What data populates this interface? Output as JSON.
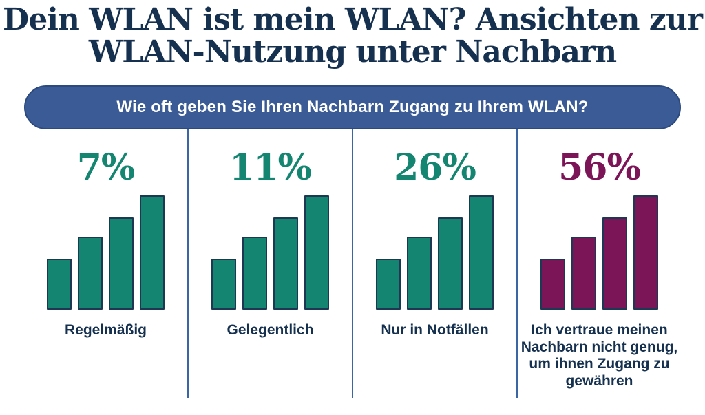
{
  "title": {
    "line1": "Dein WLAN ist mein WLAN? Ansichten zur",
    "line2": "WLAN-Nutzung unter Nachbarn",
    "full": "Dein WLAN ist mein WLAN? Ansichten zur WLAN-Nutzung unter Nachbarn"
  },
  "question_banner": {
    "text": "Wie oft geben Sie Ihren Nachbarn Zugang zu Ihrem WLAN?",
    "background": "#3B5B96",
    "text_color": "#FFFFFF"
  },
  "columns": [
    {
      "pct": "7%",
      "label": "Regelmäßig",
      "accent": "#148570",
      "bar_color": "#148570"
    },
    {
      "pct": "11%",
      "label": "Gelegentlich",
      "accent": "#148570",
      "bar_color": "#148570"
    },
    {
      "pct": "26%",
      "label": "Nur in Notfällen",
      "accent": "#148570",
      "bar_color": "#148570"
    },
    {
      "pct": "56%",
      "label": "Ich vertraue meinen Nachbarn nicht genug, um ihnen Zugang zu gewähren",
      "accent": "#7C1458",
      "bar_color": "#7C1458"
    }
  ],
  "colors": {
    "navy_text": "#15314F",
    "teal": "#148570",
    "magenta": "#7C1458",
    "banner_blue": "#3B5B96",
    "divider_blue": "#3A66A5",
    "bar_border_navy": "#1E3854",
    "background": "#FFFFFF"
  },
  "chart_data": {
    "type": "bar",
    "title": "Dein WLAN ist mein WLAN? Ansichten zur WLAN-Nutzung unter Nachbarn",
    "question": "Wie oft geben Sie Ihren Nachbarn Zugang zu Ihrem WLAN?",
    "categories": [
      "Regelmäßig",
      "Gelegentlich",
      "Nur in Notfällen",
      "Ich vertraue meinen Nachbarn nicht genug, um ihnen Zugang zu gewähren"
    ],
    "values": [
      7,
      11,
      26,
      56
    ],
    "unit": "%",
    "legend_position": "none",
    "grid": false,
    "note": "Each category displays a decorative 4-bar signal-strength glyph of identical ascending heights; glyph heights do not encode the percentage values. First three categories are teal, the last is magenta."
  }
}
